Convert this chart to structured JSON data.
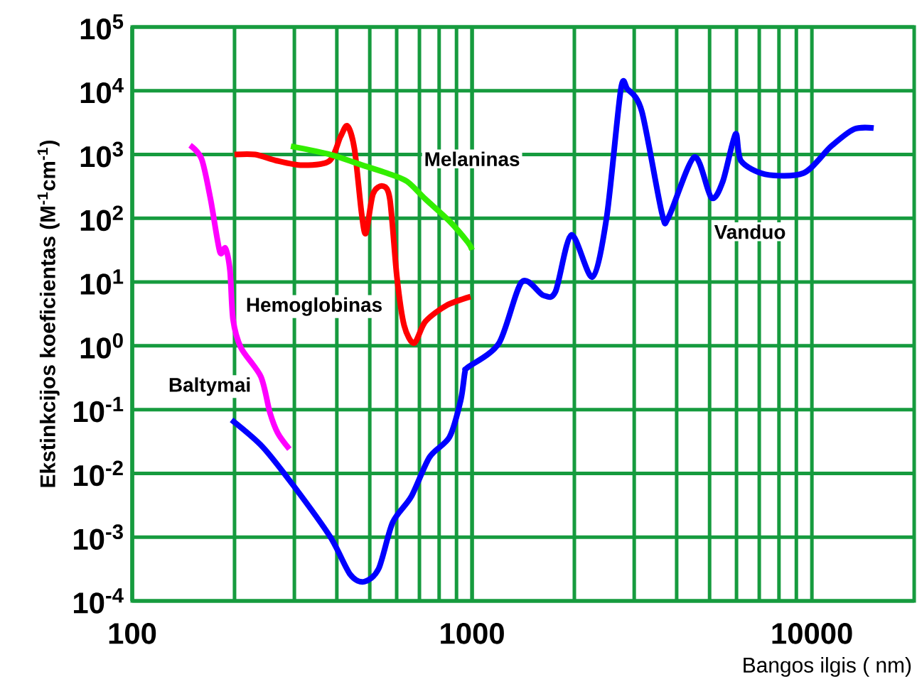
{
  "chart_data": {
    "type": "line",
    "xlabel": "Bangos ilgis ( nm)",
    "ylabel": "Ekstinkcijos koeficientas (M$^{-1}$cm$^{-1}$)",
    "log": "xy",
    "grid": true,
    "xlim": [
      100,
      20000
    ],
    "xticks": [
      100,
      1000,
      10000
    ],
    "ylim": [
      0.0001,
      100000
    ],
    "yticks": [
      {
        "value": 0.0001,
        "label": "10$^{-4}$"
      },
      {
        "value": 0.001,
        "label": "10$^{-3}$"
      },
      {
        "value": 0.01,
        "label": "10$^{-2}$"
      },
      {
        "value": 0.1,
        "label": "10$^{-1}$"
      },
      {
        "value": 1,
        "label": "10$^{0}$"
      },
      {
        "value": 10,
        "label": "10$^{1}$"
      },
      {
        "value": 100,
        "label": "10$^{2}$"
      },
      {
        "value": 1000,
        "label": "10$^{3}$"
      },
      {
        "value": 10000,
        "label": "10$^{4}$"
      },
      {
        "value": 100000,
        "label": "10$^{5}$"
      }
    ],
    "series": [
      {
        "name": "Baltymai",
        "color": "#ff00ff",
        "x": [
          148,
          160,
          170,
          181,
          188,
          194,
          198,
          209,
          239,
          254,
          268,
          290
        ],
        "values": [
          1400,
          850,
          200,
          30,
          34,
          15,
          2.6,
          0.93,
          0.33,
          0.091,
          0.043,
          0.024
        ]
      },
      {
        "name": "Hemoglobinas",
        "color": "#ff0000",
        "x": [
          200,
          230,
          266,
          316,
          380,
          410,
          430,
          451,
          473,
          487,
          511,
          546,
          573,
          601,
          631,
          675,
          729,
          841,
          990
        ],
        "values": [
          1000,
          1000,
          800,
          680,
          790,
          1900,
          2800,
          1200,
          120,
          58,
          240,
          320,
          200,
          12,
          2.1,
          1.1,
          2.4,
          4.3,
          5.9
        ]
      },
      {
        "name": "Melaninas",
        "color": "#33ee00",
        "x": [
          293,
          383,
          464,
          562,
          643,
          729,
          858,
          972,
          1000
        ],
        "values": [
          1350,
          1000,
          710,
          510,
          380,
          200,
          90,
          42,
          32
        ]
      },
      {
        "name": "Vanduo",
        "color": "#0000ff",
        "x": [
          196,
          242,
          299,
          383,
          438,
          482,
          531,
          584,
          662,
          750,
          858,
          926,
          953,
          972,
          1200,
          1400,
          1620,
          1760,
          1960,
          2260,
          2490,
          2740,
          2870,
          3160,
          3620,
          3790,
          4510,
          5060,
          5470,
          5960,
          6190,
          7290,
          9440,
          11400,
          13300,
          15200
        ],
        "values": [
          0.069,
          0.026,
          0.0063,
          0.001,
          0.00026,
          0.0002,
          0.00032,
          0.0017,
          0.0043,
          0.018,
          0.037,
          0.14,
          0.39,
          0.46,
          1.1,
          10,
          6.2,
          7.1,
          55,
          12,
          105,
          10500,
          10500,
          4700,
          120,
          105,
          910,
          210,
          380,
          2100,
          790,
          490,
          510,
          1350,
          2500,
          2600
        ]
      }
    ]
  }
}
